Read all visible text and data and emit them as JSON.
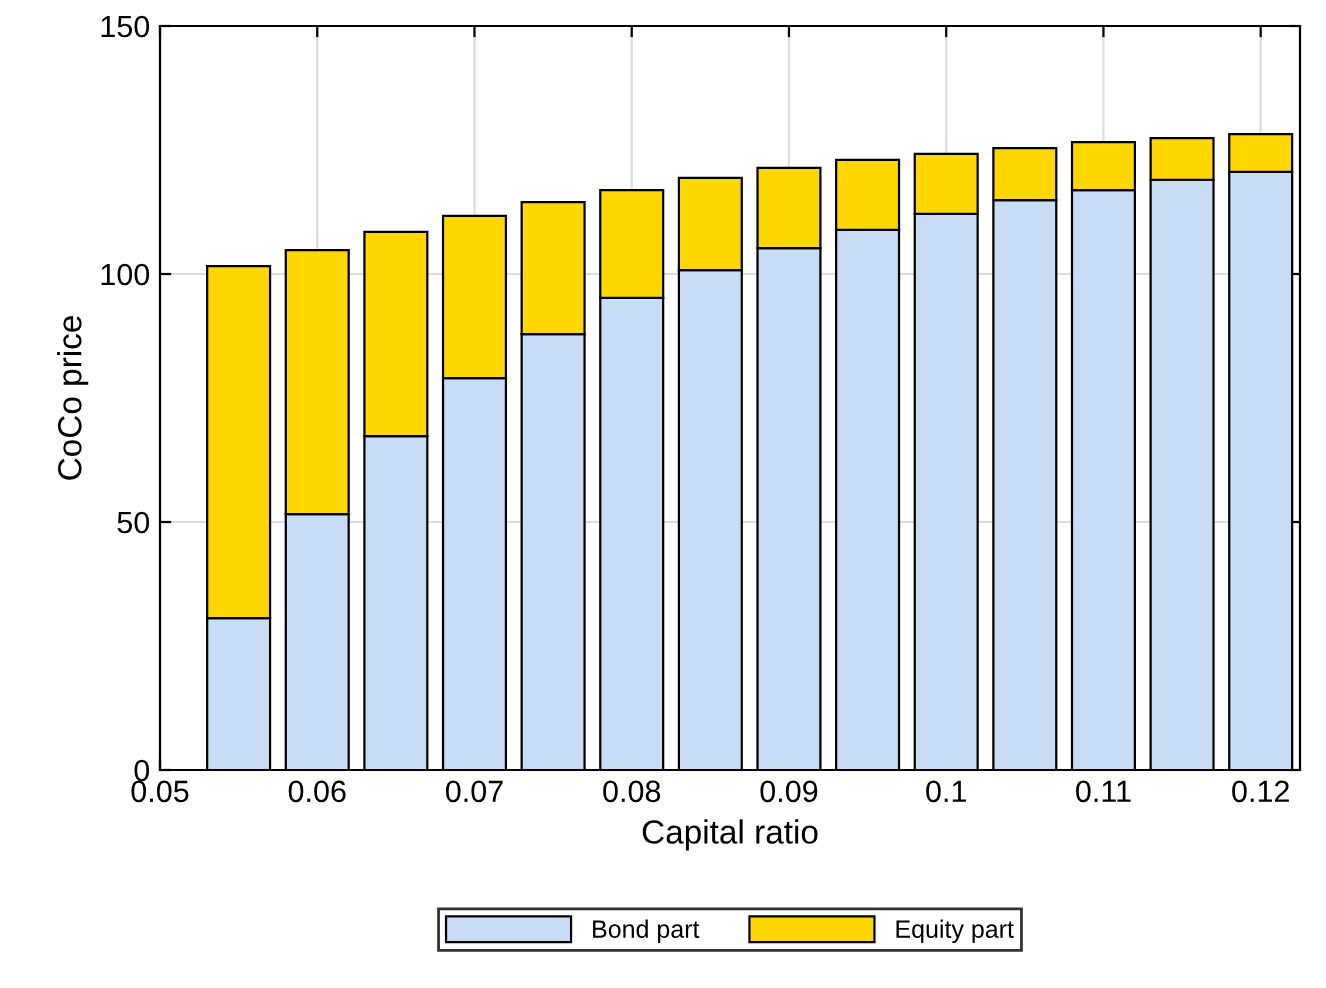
{
  "chart_data": {
    "type": "bar",
    "stacked": true,
    "xlabel": "Capital ratio",
    "ylabel": "CoCo price",
    "x": [
      0.055,
      0.06,
      0.065,
      0.07,
      0.075,
      0.08,
      0.085,
      0.09,
      0.095,
      0.1,
      0.105,
      0.11,
      0.115,
      0.12
    ],
    "series": [
      {
        "name": "Bond part",
        "color": "#c9dcf5",
        "values": [
          30.6,
          51.6,
          67.3,
          79,
          87.9,
          95.2,
          100.8,
          105.2,
          108.9,
          112.1,
          114.9,
          116.9,
          119,
          120.6
        ]
      },
      {
        "name": "Equity part",
        "color": "#ffd700",
        "values": [
          71,
          53.2,
          41.2,
          32.7,
          26.6,
          21.7,
          18.6,
          16.2,
          14.1,
          12.1,
          10.5,
          9.7,
          8.4,
          7.6
        ]
      }
    ],
    "xlim": [
      0.05,
      0.1225
    ],
    "xticks": [
      0.05,
      0.06,
      0.07,
      0.08,
      0.09,
      0.1,
      0.11,
      0.12
    ],
    "ylim": [
      0,
      150
    ],
    "yticks": [
      0,
      50,
      100,
      150
    ],
    "grid": true,
    "legend": "bottom"
  }
}
